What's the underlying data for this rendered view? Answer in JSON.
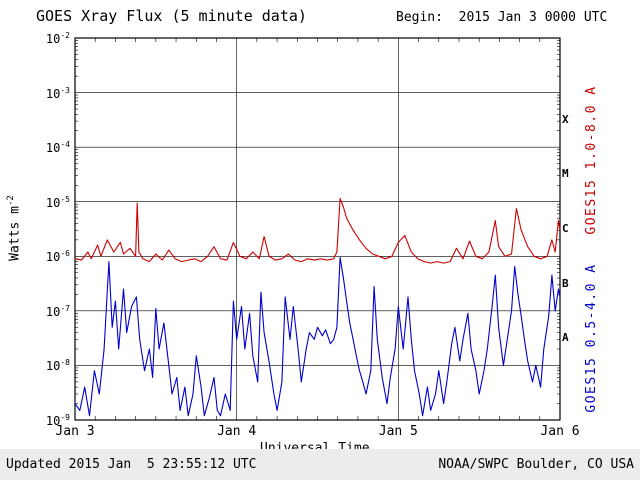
{
  "header": {
    "begin_label": "Begin:  2015 Jan 3 0000 UTC"
  },
  "footer": {
    "updated": "Updated 2015 Jan  5 23:55:12 UTC",
    "source": "NOAA/SWPC Boulder, CO USA"
  },
  "axis_labels": {
    "y_base": "Watts m",
    "y_exp": "-2",
    "x": "Universal Time"
  },
  "right_axis": {
    "long_label": "GOES15 1.0-8.0 A",
    "short_label": "GOES15 0.5-4.0 A"
  },
  "colors": {
    "long": "#cc0000",
    "short": "#0000cc",
    "frame": "#000000"
  },
  "chart_data": {
    "type": "line",
    "title": "GOES Xray Flux (5 minute data)",
    "xlabel": "Universal Time",
    "ylabel": "Watts m^-2",
    "yscale": "log",
    "ylim": [
      1e-09,
      0.01
    ],
    "x_range_days": [
      0,
      3
    ],
    "x_start": "2015 Jan 3 0000 UTC",
    "grid": true,
    "y_tick_exponents": [
      -2,
      -3,
      -4,
      -5,
      -6,
      -7,
      -8,
      -9
    ],
    "x_ticks": [
      {
        "day": 0,
        "label": "Jan 3"
      },
      {
        "day": 1,
        "label": "Jan 4"
      },
      {
        "day": 2,
        "label": "Jan 5"
      },
      {
        "day": 3,
        "label": "Jan 6"
      }
    ],
    "flare_classes": [
      {
        "label": "X",
        "log_center": -3.5
      },
      {
        "label": "M",
        "log_center": -4.5
      },
      {
        "label": "C",
        "log_center": -5.5
      },
      {
        "label": "B",
        "log_center": -6.5
      },
      {
        "label": "A",
        "log_center": -7.5
      }
    ],
    "series": [
      {
        "name": "GOES15 1.0-8.0 A",
        "color": "#cc0000",
        "points": [
          [
            0.0,
            9e-07
          ],
          [
            0.04,
            8.5e-07
          ],
          [
            0.08,
            1.2e-06
          ],
          [
            0.1,
            9e-07
          ],
          [
            0.14,
            1.6e-06
          ],
          [
            0.16,
            1e-06
          ],
          [
            0.2,
            2e-06
          ],
          [
            0.24,
            1.2e-06
          ],
          [
            0.28,
            1.8e-06
          ],
          [
            0.3,
            1.1e-06
          ],
          [
            0.34,
            1.4e-06
          ],
          [
            0.375,
            1e-06
          ],
          [
            0.385,
            9.5e-06
          ],
          [
            0.395,
            1.2e-06
          ],
          [
            0.42,
            9e-07
          ],
          [
            0.46,
            8e-07
          ],
          [
            0.5,
            1.1e-06
          ],
          [
            0.54,
            8.5e-07
          ],
          [
            0.58,
            1.3e-06
          ],
          [
            0.62,
            9e-07
          ],
          [
            0.66,
            8e-07
          ],
          [
            0.7,
            8.5e-07
          ],
          [
            0.74,
            9e-07
          ],
          [
            0.78,
            8e-07
          ],
          [
            0.82,
            1e-06
          ],
          [
            0.86,
            1.5e-06
          ],
          [
            0.9,
            9e-07
          ],
          [
            0.94,
            8.5e-07
          ],
          [
            0.98,
            1.8e-06
          ],
          [
            1.02,
            1e-06
          ],
          [
            1.06,
            9e-07
          ],
          [
            1.1,
            1.2e-06
          ],
          [
            1.14,
            9e-07
          ],
          [
            1.17,
            2.3e-06
          ],
          [
            1.2,
            1e-06
          ],
          [
            1.24,
            8.5e-07
          ],
          [
            1.28,
            9e-07
          ],
          [
            1.32,
            1.1e-06
          ],
          [
            1.36,
            8.5e-07
          ],
          [
            1.4,
            8e-07
          ],
          [
            1.44,
            9e-07
          ],
          [
            1.48,
            8.5e-07
          ],
          [
            1.52,
            9e-07
          ],
          [
            1.56,
            8.5e-07
          ],
          [
            1.6,
            9e-07
          ],
          [
            1.62,
            1.2e-06
          ],
          [
            1.64,
            1.15e-05
          ],
          [
            1.66,
            8e-06
          ],
          [
            1.68,
            5e-06
          ],
          [
            1.72,
            3e-06
          ],
          [
            1.76,
            2e-06
          ],
          [
            1.8,
            1.4e-06
          ],
          [
            1.84,
            1.1e-06
          ],
          [
            1.88,
            1e-06
          ],
          [
            1.92,
            9e-07
          ],
          [
            1.96,
            1e-06
          ],
          [
            2.0,
            1.8e-06
          ],
          [
            2.04,
            2.4e-06
          ],
          [
            2.08,
            1.2e-06
          ],
          [
            2.12,
            9e-07
          ],
          [
            2.16,
            8e-07
          ],
          [
            2.2,
            7.5e-07
          ],
          [
            2.24,
            8e-07
          ],
          [
            2.28,
            7.5e-07
          ],
          [
            2.32,
            8e-07
          ],
          [
            2.36,
            1.4e-06
          ],
          [
            2.4,
            9e-07
          ],
          [
            2.44,
            1.9e-06
          ],
          [
            2.48,
            1e-06
          ],
          [
            2.52,
            9e-07
          ],
          [
            2.56,
            1.2e-06
          ],
          [
            2.6,
            4.5e-06
          ],
          [
            2.62,
            1.5e-06
          ],
          [
            2.66,
            1e-06
          ],
          [
            2.7,
            1.1e-06
          ],
          [
            2.73,
            7.5e-06
          ],
          [
            2.76,
            3e-06
          ],
          [
            2.8,
            1.5e-06
          ],
          [
            2.84,
            1e-06
          ],
          [
            2.88,
            9e-07
          ],
          [
            2.92,
            1e-06
          ],
          [
            2.95,
            2e-06
          ],
          [
            2.97,
            1.2e-06
          ],
          [
            2.99,
            4.5e-06
          ],
          [
            3.0,
            3e-06
          ]
        ]
      },
      {
        "name": "GOES15 0.5-4.0 A",
        "color": "#0000cc",
        "points": [
          [
            0.0,
            2e-09
          ],
          [
            0.03,
            1.5e-09
          ],
          [
            0.06,
            4e-09
          ],
          [
            0.09,
            1.2e-09
          ],
          [
            0.12,
            8e-09
          ],
          [
            0.15,
            3e-09
          ],
          [
            0.18,
            2e-08
          ],
          [
            0.21,
            8e-07
          ],
          [
            0.23,
            5e-08
          ],
          [
            0.25,
            1.5e-07
          ],
          [
            0.27,
            2e-08
          ],
          [
            0.3,
            2.5e-07
          ],
          [
            0.32,
            4e-08
          ],
          [
            0.35,
            1.2e-07
          ],
          [
            0.38,
            1.8e-07
          ],
          [
            0.4,
            3e-08
          ],
          [
            0.43,
            8e-09
          ],
          [
            0.46,
            2e-08
          ],
          [
            0.48,
            6e-09
          ],
          [
            0.5,
            1.1e-07
          ],
          [
            0.52,
            2e-08
          ],
          [
            0.55,
            6e-08
          ],
          [
            0.58,
            1e-08
          ],
          [
            0.6,
            3e-09
          ],
          [
            0.63,
            6e-09
          ],
          [
            0.65,
            1.5e-09
          ],
          [
            0.68,
            4e-09
          ],
          [
            0.7,
            1.2e-09
          ],
          [
            0.73,
            3e-09
          ],
          [
            0.75,
            1.5e-08
          ],
          [
            0.78,
            4e-09
          ],
          [
            0.8,
            1.2e-09
          ],
          [
            0.83,
            2.5e-09
          ],
          [
            0.86,
            6e-09
          ],
          [
            0.88,
            1.5e-09
          ],
          [
            0.9,
            1.2e-09
          ],
          [
            0.93,
            3e-09
          ],
          [
            0.96,
            1.5e-09
          ],
          [
            0.98,
            1.5e-07
          ],
          [
            1.0,
            3e-08
          ],
          [
            1.03,
            1.2e-07
          ],
          [
            1.05,
            2e-08
          ],
          [
            1.08,
            9e-08
          ],
          [
            1.1,
            1.5e-08
          ],
          [
            1.13,
            5e-09
          ],
          [
            1.15,
            2.2e-07
          ],
          [
            1.17,
            4e-08
          ],
          [
            1.2,
            1.2e-08
          ],
          [
            1.23,
            3e-09
          ],
          [
            1.25,
            1.5e-09
          ],
          [
            1.28,
            5e-09
          ],
          [
            1.3,
            1.8e-07
          ],
          [
            1.33,
            3e-08
          ],
          [
            1.35,
            1.2e-07
          ],
          [
            1.38,
            2e-08
          ],
          [
            1.4,
            5e-09
          ],
          [
            1.43,
            2e-08
          ],
          [
            1.45,
            4e-08
          ],
          [
            1.48,
            3e-08
          ],
          [
            1.5,
            5e-08
          ],
          [
            1.53,
            3.5e-08
          ],
          [
            1.55,
            4.5e-08
          ],
          [
            1.58,
            2.5e-08
          ],
          [
            1.6,
            3e-08
          ],
          [
            1.62,
            5e-08
          ],
          [
            1.64,
            9.5e-07
          ],
          [
            1.66,
            4e-07
          ],
          [
            1.68,
            1.5e-07
          ],
          [
            1.7,
            6e-08
          ],
          [
            1.72,
            3e-08
          ],
          [
            1.74,
            1.5e-08
          ],
          [
            1.76,
            8e-09
          ],
          [
            1.78,
            5e-09
          ],
          [
            1.8,
            3e-09
          ],
          [
            1.83,
            8e-09
          ],
          [
            1.85,
            2.8e-07
          ],
          [
            1.87,
            3e-08
          ],
          [
            1.9,
            6e-09
          ],
          [
            1.93,
            2e-09
          ],
          [
            1.95,
            6e-09
          ],
          [
            1.98,
            2e-08
          ],
          [
            2.0,
            1.2e-07
          ],
          [
            2.03,
            2e-08
          ],
          [
            2.06,
            1.8e-07
          ],
          [
            2.08,
            3e-08
          ],
          [
            2.1,
            8e-09
          ],
          [
            2.13,
            3e-09
          ],
          [
            2.15,
            1.2e-09
          ],
          [
            2.18,
            4e-09
          ],
          [
            2.2,
            1.5e-09
          ],
          [
            2.23,
            3e-09
          ],
          [
            2.25,
            8e-09
          ],
          [
            2.28,
            2e-09
          ],
          [
            2.3,
            5e-09
          ],
          [
            2.33,
            2.5e-08
          ],
          [
            2.35,
            5e-08
          ],
          [
            2.38,
            1.2e-08
          ],
          [
            2.4,
            3e-08
          ],
          [
            2.43,
            9e-08
          ],
          [
            2.45,
            2e-08
          ],
          [
            2.48,
            8e-09
          ],
          [
            2.5,
            3e-09
          ],
          [
            2.53,
            8e-09
          ],
          [
            2.55,
            2e-08
          ],
          [
            2.58,
            1.2e-07
          ],
          [
            2.6,
            4.5e-07
          ],
          [
            2.62,
            5e-08
          ],
          [
            2.65,
            1e-08
          ],
          [
            2.68,
            4e-08
          ],
          [
            2.7,
            1e-07
          ],
          [
            2.72,
            6.5e-07
          ],
          [
            2.74,
            2e-07
          ],
          [
            2.76,
            8e-08
          ],
          [
            2.78,
            3e-08
          ],
          [
            2.8,
            1.2e-08
          ],
          [
            2.83,
            5e-09
          ],
          [
            2.85,
            1e-08
          ],
          [
            2.88,
            4e-09
          ],
          [
            2.9,
            2e-08
          ],
          [
            2.93,
            8e-08
          ],
          [
            2.95,
            4.5e-07
          ],
          [
            2.97,
            1e-07
          ],
          [
            2.99,
            2.5e-07
          ],
          [
            3.0,
            1.8e-07
          ]
        ]
      }
    ]
  }
}
